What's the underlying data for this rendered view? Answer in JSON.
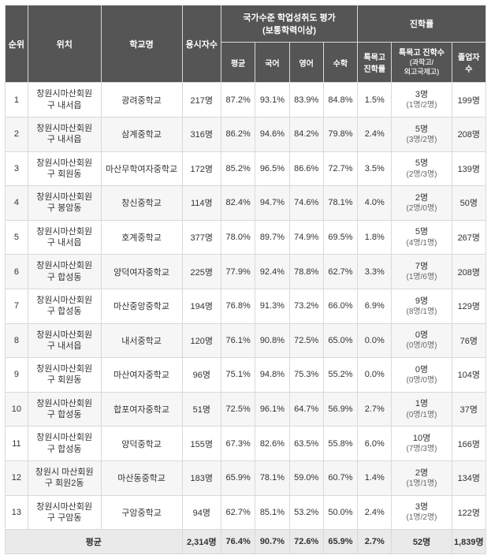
{
  "header": {
    "rank": "순위",
    "location": "위치",
    "school": "학교명",
    "applicants": "용시자수",
    "assess_group": "국가수준 학업성취도 평가 (보통학력이상)",
    "enroll_group": "진학률",
    "avg": "평균",
    "korean": "국어",
    "english": "영어",
    "math": "수학",
    "special_rate": "특목고\n진학률",
    "special_count": "특목고 진학수",
    "special_count_sub": "(과학고/외고국제고)",
    "grads": "졸업자\n수"
  },
  "rows": [
    {
      "rank": 1,
      "loc1": "창원시마산회원",
      "loc2": "구 내서읍",
      "school": "광려중학교",
      "cnt": "217명",
      "avg": "87.2%",
      "kor": "93.1%",
      "eng": "83.9%",
      "math": "84.8%",
      "srate": "1.5%",
      "sp1": "3명",
      "sp2": "(1명/2명)",
      "grad": "199명"
    },
    {
      "rank": 2,
      "loc1": "창원시마산회원",
      "loc2": "구 내서읍",
      "school": "삼계중학교",
      "cnt": "316명",
      "avg": "86.2%",
      "kor": "94.6%",
      "eng": "84.2%",
      "math": "79.8%",
      "srate": "2.4%",
      "sp1": "5명",
      "sp2": "(3명/2명)",
      "grad": "208명"
    },
    {
      "rank": 3,
      "loc1": "창원시마산회원",
      "loc2": "구 회원동",
      "school": "마산무학여자중학교",
      "cnt": "172명",
      "avg": "85.2%",
      "kor": "96.5%",
      "eng": "86.6%",
      "math": "72.7%",
      "srate": "3.5%",
      "sp1": "5명",
      "sp2": "(2명/3명)",
      "grad": "139명"
    },
    {
      "rank": 4,
      "loc1": "창원시마산회원",
      "loc2": "구 봉암동",
      "school": "창신중학교",
      "cnt": "114명",
      "avg": "82.4%",
      "kor": "94.7%",
      "eng": "74.6%",
      "math": "78.1%",
      "srate": "4.0%",
      "sp1": "2명",
      "sp2": "(2명/0명)",
      "grad": "50명"
    },
    {
      "rank": 5,
      "loc1": "창원시마산회원",
      "loc2": "구 내서읍",
      "school": "호계중학교",
      "cnt": "377명",
      "avg": "78.0%",
      "kor": "89.7%",
      "eng": "74.9%",
      "math": "69.5%",
      "srate": "1.8%",
      "sp1": "5명",
      "sp2": "(4명/1명)",
      "grad": "267명"
    },
    {
      "rank": 6,
      "loc1": "창원시마산회원",
      "loc2": "구 합성동",
      "school": "양덕여자중학교",
      "cnt": "225명",
      "avg": "77.9%",
      "kor": "92.4%",
      "eng": "78.8%",
      "math": "62.7%",
      "srate": "3.3%",
      "sp1": "7명",
      "sp2": "(1명/6명)",
      "grad": "208명"
    },
    {
      "rank": 7,
      "loc1": "창원시마산회원",
      "loc2": "구 합성동",
      "school": "마산중앙중학교",
      "cnt": "194명",
      "avg": "76.8%",
      "kor": "91.3%",
      "eng": "73.2%",
      "math": "66.0%",
      "srate": "6.9%",
      "sp1": "9명",
      "sp2": "(8명/1명)",
      "grad": "129명"
    },
    {
      "rank": 8,
      "loc1": "창원시마산회원",
      "loc2": "구 내서읍",
      "school": "내서중학교",
      "cnt": "120명",
      "avg": "76.1%",
      "kor": "90.8%",
      "eng": "72.5%",
      "math": "65.0%",
      "srate": "0.0%",
      "sp1": "0명",
      "sp2": "(0명/0명)",
      "grad": "76명"
    },
    {
      "rank": 9,
      "loc1": "창원시마산회원",
      "loc2": "구 회원동",
      "school": "마산여자중학교",
      "cnt": "96명",
      "avg": "75.1%",
      "kor": "94.8%",
      "eng": "75.3%",
      "math": "55.2%",
      "srate": "0.0%",
      "sp1": "0명",
      "sp2": "(0명/0명)",
      "grad": "104명"
    },
    {
      "rank": 10,
      "loc1": "창원시마산회원",
      "loc2": "구 합성동",
      "school": "합포여자중학교",
      "cnt": "51명",
      "avg": "72.5%",
      "kor": "96.1%",
      "eng": "64.7%",
      "math": "56.9%",
      "srate": "2.7%",
      "sp1": "1명",
      "sp2": "(0명/1명)",
      "grad": "37명"
    },
    {
      "rank": 11,
      "loc1": "창원시마산회원",
      "loc2": "구 합성동",
      "school": "양덕중학교",
      "cnt": "155명",
      "avg": "67.3%",
      "kor": "82.6%",
      "eng": "63.5%",
      "math": "55.8%",
      "srate": "6.0%",
      "sp1": "10명",
      "sp2": "(7명/3명)",
      "grad": "166명"
    },
    {
      "rank": 12,
      "loc1": "창원시 마산회원",
      "loc2": "구 회원2동",
      "school": "마산동중학교",
      "cnt": "183명",
      "avg": "65.9%",
      "kor": "78.1%",
      "eng": "59.0%",
      "math": "60.7%",
      "srate": "1.4%",
      "sp1": "2명",
      "sp2": "(1명/1명)",
      "grad": "134명"
    },
    {
      "rank": 13,
      "loc1": "창원시마산회원",
      "loc2": "구 구암동",
      "school": "구암중학교",
      "cnt": "94명",
      "avg": "62.7%",
      "kor": "85.1%",
      "eng": "53.2%",
      "math": "50.0%",
      "srate": "2.4%",
      "sp1": "3명",
      "sp2": "(1명/2명)",
      "grad": "122명"
    }
  ],
  "footer": {
    "label": "평균",
    "cnt": "2,314명",
    "avg": "76.4%",
    "kor": "90.7%",
    "eng": "72.6%",
    "math": "65.9%",
    "srate": "2.7%",
    "sp": "52명",
    "grad": "1,839명"
  },
  "colors": {
    "header_bg": "#555555",
    "header_fg": "#ffffff",
    "border": "#d9d9d9",
    "row_alt": "#f6f6f6",
    "footer_bg": "#eaeaea"
  }
}
